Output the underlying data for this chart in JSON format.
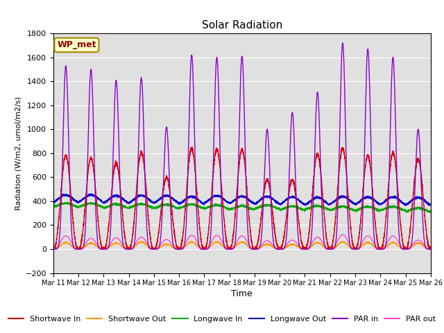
{
  "title": "Solar Radiation",
  "xlabel": "Time",
  "ylabel": "Radiation (W/m2, umol/m2/s)",
  "ylim": [
    -200,
    1800
  ],
  "yticks": [
    -200,
    0,
    200,
    400,
    600,
    800,
    1000,
    1200,
    1400,
    1600,
    1800
  ],
  "num_days": 15,
  "start_day": 11,
  "colors": {
    "shortwave_in": "#dd0000",
    "shortwave_out": "#ff9900",
    "longwave_in": "#00aa00",
    "longwave_out": "#0000cc",
    "par_in": "#8800cc",
    "par_out": "#ff44cc"
  },
  "annotation_text": "WP_met",
  "bg_color": "#e0e0e0",
  "fig_bg_color": "#ffffff",
  "grid_color": "#ffffff",
  "linewidth": 1.0,
  "points_per_day": 288,
  "par_peaks": [
    1530,
    1500,
    1410,
    1430,
    1020,
    1620,
    1600,
    1610,
    1000,
    1140,
    1310,
    1720,
    1670,
    1600,
    1000
  ],
  "sw_peaks": [
    780,
    760,
    720,
    810,
    600,
    840,
    830,
    830,
    580,
    580,
    790,
    840,
    780,
    800,
    750
  ],
  "par_out_peaks": [
    110,
    90,
    95,
    100,
    80,
    115,
    115,
    110,
    70,
    75,
    100,
    120,
    110,
    110,
    75
  ],
  "sw_out_peaks": [
    55,
    50,
    50,
    60,
    40,
    60,
    60,
    60,
    40,
    40,
    55,
    60,
    55,
    55,
    50
  ],
  "lw_in_night": 355,
  "lw_out_night": 390,
  "lw_day_bump_in": 30,
  "lw_day_bump_out": 60
}
